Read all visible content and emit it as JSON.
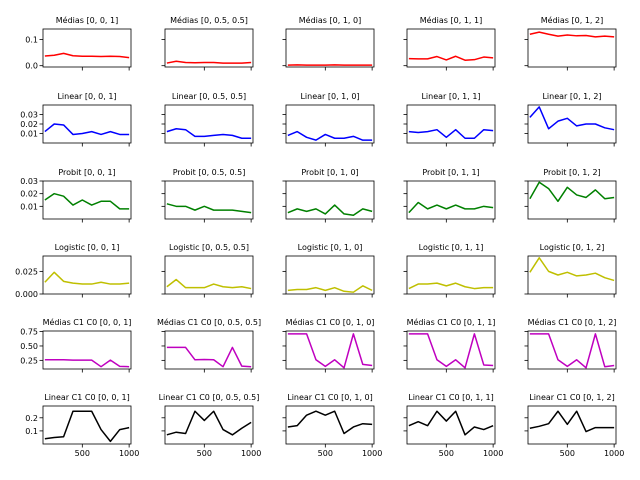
{
  "figure": {
    "x_tick_labels": [
      "500",
      "1000"
    ],
    "x_tick_values": [
      500,
      1000
    ],
    "xlim": [
      80,
      1020
    ]
  },
  "chart_data": [
    {
      "type": "line",
      "row": 0,
      "col": 0,
      "title": "Médias [0, 0, 1]",
      "color": "#ff0000",
      "ylim": [
        -0.005,
        0.14
      ],
      "yticks": [
        0.0,
        0.1
      ],
      "ytick_labels": [
        "0.0",
        "0.1"
      ],
      "x": [
        100,
        200,
        300,
        400,
        500,
        600,
        700,
        800,
        900,
        1000
      ],
      "y": [
        0.037,
        0.04,
        0.047,
        0.038,
        0.036,
        0.036,
        0.035,
        0.036,
        0.035,
        0.031
      ]
    },
    {
      "type": "line",
      "row": 0,
      "col": 1,
      "title": "Médias [0, 0.5, 0.5]",
      "color": "#ff0000",
      "ylim": [
        -0.005,
        0.14
      ],
      "yticks": [
        0.0,
        0.1
      ],
      "ytick_labels": [],
      "x": [
        100,
        200,
        300,
        400,
        500,
        600,
        700,
        800,
        900,
        1000
      ],
      "y": [
        0.01,
        0.017,
        0.012,
        0.011,
        0.012,
        0.012,
        0.01,
        0.01,
        0.01,
        0.012
      ]
    },
    {
      "type": "line",
      "row": 0,
      "col": 2,
      "title": "Médias [0, 1, 0]",
      "color": "#ff0000",
      "ylim": [
        -0.005,
        0.14
      ],
      "yticks": [
        0.0,
        0.1
      ],
      "ytick_labels": [],
      "x": [
        100,
        200,
        300,
        400,
        500,
        600,
        700,
        800,
        900,
        1000
      ],
      "y": [
        0.002,
        0.003,
        0.002,
        0.002,
        0.002,
        0.003,
        0.002,
        0.002,
        0.002,
        0.002
      ]
    },
    {
      "type": "line",
      "row": 0,
      "col": 3,
      "title": "Médias [0, 1, 1]",
      "color": "#ff0000",
      "ylim": [
        -0.005,
        0.14
      ],
      "yticks": [
        0.0,
        0.1
      ],
      "ytick_labels": [],
      "x": [
        100,
        200,
        300,
        400,
        500,
        600,
        700,
        800,
        900,
        1000
      ],
      "y": [
        0.027,
        0.026,
        0.026,
        0.035,
        0.022,
        0.036,
        0.021,
        0.023,
        0.033,
        0.03
      ]
    },
    {
      "type": "line",
      "row": 0,
      "col": 4,
      "title": "Médias [0, 1, 2]",
      "color": "#ff0000",
      "ylim": [
        -0.005,
        0.14
      ],
      "yticks": [
        0.0,
        0.1
      ],
      "ytick_labels": [],
      "x": [
        100,
        200,
        300,
        400,
        500,
        600,
        700,
        800,
        900,
        1000
      ],
      "y": [
        0.12,
        0.128,
        0.12,
        0.113,
        0.117,
        0.114,
        0.115,
        0.11,
        0.113,
        0.11
      ]
    },
    {
      "type": "line",
      "row": 1,
      "col": 0,
      "title": "Linear [0, 0, 1]",
      "color": "#0000ff",
      "ylim": [
        0.0,
        0.04
      ],
      "yticks": [
        0.01,
        0.02,
        0.03
      ],
      "ytick_labels": [
        "0.01",
        "0.02",
        "0.03"
      ],
      "x": [
        100,
        200,
        300,
        400,
        500,
        600,
        700,
        800,
        900,
        1000
      ],
      "y": [
        0.012,
        0.02,
        0.019,
        0.009,
        0.01,
        0.012,
        0.009,
        0.012,
        0.009,
        0.009
      ]
    },
    {
      "type": "line",
      "row": 1,
      "col": 1,
      "title": "Linear [0, 0.5, 0.5]",
      "color": "#0000ff",
      "ylim": [
        0.0,
        0.04
      ],
      "yticks": [
        0.01,
        0.02,
        0.03
      ],
      "ytick_labels": [],
      "x": [
        100,
        200,
        300,
        400,
        500,
        600,
        700,
        800,
        900,
        1000
      ],
      "y": [
        0.012,
        0.015,
        0.014,
        0.007,
        0.007,
        0.008,
        0.009,
        0.008,
        0.005,
        0.005
      ]
    },
    {
      "type": "line",
      "row": 1,
      "col": 2,
      "title": "Linear [0, 1, 0]",
      "color": "#0000ff",
      "ylim": [
        0.0,
        0.04
      ],
      "yticks": [
        0.01,
        0.02,
        0.03
      ],
      "ytick_labels": [],
      "x": [
        100,
        200,
        300,
        400,
        500,
        600,
        700,
        800,
        900,
        1000
      ],
      "y": [
        0.008,
        0.012,
        0.006,
        0.003,
        0.009,
        0.005,
        0.005,
        0.007,
        0.003,
        0.003
      ]
    },
    {
      "type": "line",
      "row": 1,
      "col": 3,
      "title": "Linear [0, 1, 1]",
      "color": "#0000ff",
      "ylim": [
        0.0,
        0.04
      ],
      "yticks": [
        0.01,
        0.02,
        0.03
      ],
      "ytick_labels": [],
      "x": [
        100,
        200,
        300,
        400,
        500,
        600,
        700,
        800,
        900,
        1000
      ],
      "y": [
        0.012,
        0.011,
        0.012,
        0.014,
        0.006,
        0.014,
        0.005,
        0.005,
        0.014,
        0.013
      ]
    },
    {
      "type": "line",
      "row": 1,
      "col": 4,
      "title": "Linear [0, 1, 2]",
      "color": "#0000ff",
      "ylim": [
        0.0,
        0.04
      ],
      "yticks": [
        0.01,
        0.02,
        0.03
      ],
      "ytick_labels": [],
      "x": [
        100,
        200,
        300,
        400,
        500,
        600,
        700,
        800,
        900,
        1000
      ],
      "y": [
        0.027,
        0.038,
        0.015,
        0.023,
        0.026,
        0.018,
        0.02,
        0.02,
        0.016,
        0.014
      ]
    },
    {
      "type": "line",
      "row": 2,
      "col": 0,
      "title": "Probit [0, 0, 1]",
      "color": "#008000",
      "ylim": [
        0.0,
        0.03
      ],
      "yticks": [
        0.01,
        0.02,
        0.03
      ],
      "ytick_labels": [
        "0.01",
        "0.02",
        "0.03"
      ],
      "x": [
        100,
        200,
        300,
        400,
        500,
        600,
        700,
        800,
        900,
        1000
      ],
      "y": [
        0.015,
        0.02,
        0.018,
        0.011,
        0.015,
        0.011,
        0.014,
        0.014,
        0.008,
        0.008
      ]
    },
    {
      "type": "line",
      "row": 2,
      "col": 1,
      "title": "Probit [0, 0.5, 0.5]",
      "color": "#008000",
      "ylim": [
        0.0,
        0.03
      ],
      "yticks": [
        0.01,
        0.02,
        0.03
      ],
      "ytick_labels": [],
      "x": [
        100,
        200,
        300,
        400,
        500,
        600,
        700,
        800,
        900,
        1000
      ],
      "y": [
        0.012,
        0.01,
        0.01,
        0.007,
        0.01,
        0.007,
        0.007,
        0.007,
        0.006,
        0.005
      ]
    },
    {
      "type": "line",
      "row": 2,
      "col": 2,
      "title": "Probit [0, 1, 0]",
      "color": "#008000",
      "ylim": [
        0.0,
        0.03
      ],
      "yticks": [
        0.01,
        0.02,
        0.03
      ],
      "ytick_labels": [],
      "x": [
        100,
        200,
        300,
        400,
        500,
        600,
        700,
        800,
        900,
        1000
      ],
      "y": [
        0.005,
        0.008,
        0.006,
        0.008,
        0.004,
        0.011,
        0.004,
        0.003,
        0.008,
        0.006
      ]
    },
    {
      "type": "line",
      "row": 2,
      "col": 3,
      "title": "Probit [0, 1, 1]",
      "color": "#008000",
      "ylim": [
        0.0,
        0.03
      ],
      "yticks": [
        0.01,
        0.02,
        0.03
      ],
      "ytick_labels": [],
      "x": [
        100,
        200,
        300,
        400,
        500,
        600,
        700,
        800,
        900,
        1000
      ],
      "y": [
        0.005,
        0.013,
        0.008,
        0.011,
        0.008,
        0.011,
        0.008,
        0.008,
        0.01,
        0.009
      ]
    },
    {
      "type": "line",
      "row": 2,
      "col": 4,
      "title": "Probit [0, 1, 2]",
      "color": "#008000",
      "ylim": [
        0.0,
        0.03
      ],
      "yticks": [
        0.01,
        0.02,
        0.03
      ],
      "ytick_labels": [],
      "x": [
        100,
        200,
        300,
        400,
        500,
        600,
        700,
        800,
        900,
        1000
      ],
      "y": [
        0.016,
        0.029,
        0.024,
        0.014,
        0.025,
        0.019,
        0.017,
        0.023,
        0.016,
        0.017
      ]
    },
    {
      "type": "line",
      "row": 3,
      "col": 0,
      "title": "Logistic [0, 0, 1]",
      "color": "#bfbf00",
      "ylim": [
        0.0,
        0.042
      ],
      "yticks": [
        0.0,
        0.025
      ],
      "ytick_labels": [
        "0.000",
        "0.025"
      ],
      "x": [
        100,
        200,
        300,
        400,
        500,
        600,
        700,
        800,
        900,
        1000
      ],
      "y": [
        0.013,
        0.024,
        0.014,
        0.012,
        0.011,
        0.011,
        0.013,
        0.011,
        0.011,
        0.012
      ]
    },
    {
      "type": "line",
      "row": 3,
      "col": 1,
      "title": "Logistic [0, 0.5, 0.5]",
      "color": "#bfbf00",
      "ylim": [
        0.0,
        0.042
      ],
      "yticks": [
        0.0,
        0.025
      ],
      "ytick_labels": [],
      "x": [
        100,
        200,
        300,
        400,
        500,
        600,
        700,
        800,
        900,
        1000
      ],
      "y": [
        0.008,
        0.016,
        0.007,
        0.007,
        0.007,
        0.011,
        0.008,
        0.007,
        0.008,
        0.006
      ]
    },
    {
      "type": "line",
      "row": 3,
      "col": 2,
      "title": "Logistic [0, 1, 0]",
      "color": "#bfbf00",
      "ylim": [
        0.0,
        0.042
      ],
      "yticks": [
        0.0,
        0.025
      ],
      "ytick_labels": [],
      "x": [
        100,
        200,
        300,
        400,
        500,
        600,
        700,
        800,
        900,
        1000
      ],
      "y": [
        0.004,
        0.005,
        0.005,
        0.007,
        0.004,
        0.007,
        0.003,
        0.002,
        0.009,
        0.004
      ]
    },
    {
      "type": "line",
      "row": 3,
      "col": 3,
      "title": "Logistic [0, 1, 1]",
      "color": "#bfbf00",
      "ylim": [
        0.0,
        0.042
      ],
      "yticks": [
        0.0,
        0.025
      ],
      "ytick_labels": [],
      "x": [
        100,
        200,
        300,
        400,
        500,
        600,
        700,
        800,
        900,
        1000
      ],
      "y": [
        0.006,
        0.011,
        0.011,
        0.012,
        0.009,
        0.012,
        0.008,
        0.006,
        0.007,
        0.007
      ]
    },
    {
      "type": "line",
      "row": 3,
      "col": 4,
      "title": "Logistic [0, 1, 2]",
      "color": "#bfbf00",
      "ylim": [
        0.0,
        0.042
      ],
      "yticks": [
        0.0,
        0.025
      ],
      "ytick_labels": [],
      "x": [
        100,
        200,
        300,
        400,
        500,
        600,
        700,
        800,
        900,
        1000
      ],
      "y": [
        0.024,
        0.04,
        0.025,
        0.021,
        0.024,
        0.02,
        0.021,
        0.023,
        0.018,
        0.015
      ]
    },
    {
      "type": "line",
      "row": 4,
      "col": 0,
      "title": "Médias C1 C0 [0, 0, 1]",
      "color": "#bf00bf",
      "ylim": [
        0.1,
        0.76
      ],
      "yticks": [
        0.25,
        0.5,
        0.75
      ],
      "ytick_labels": [
        "0.25",
        "0.50",
        "0.75"
      ],
      "x": [
        100,
        200,
        300,
        400,
        500,
        600,
        700,
        800,
        900,
        1000
      ],
      "y": [
        0.26,
        0.26,
        0.26,
        0.255,
        0.255,
        0.255,
        0.14,
        0.255,
        0.145,
        0.14
      ]
    },
    {
      "type": "line",
      "row": 4,
      "col": 1,
      "title": "Médias C1 C0 [0, 0.5, 0.5]",
      "color": "#bf00bf",
      "ylim": [
        0.1,
        0.76
      ],
      "yticks": [
        0.25,
        0.5,
        0.75
      ],
      "ytick_labels": [],
      "x": [
        100,
        200,
        300,
        400,
        500,
        600,
        700,
        800,
        900,
        1000
      ],
      "y": [
        0.475,
        0.475,
        0.475,
        0.26,
        0.265,
        0.26,
        0.14,
        0.475,
        0.15,
        0.14
      ]
    },
    {
      "type": "line",
      "row": 4,
      "col": 2,
      "title": "Médias C1 C0 [0, 1, 0]",
      "color": "#bf00bf",
      "ylim": [
        0.1,
        0.76
      ],
      "yticks": [
        0.25,
        0.5,
        0.75
      ],
      "ytick_labels": [],
      "x": [
        100,
        200,
        300,
        400,
        500,
        600,
        700,
        800,
        900,
        1000
      ],
      "y": [
        0.71,
        0.71,
        0.71,
        0.26,
        0.145,
        0.26,
        0.12,
        0.71,
        0.18,
        0.16
      ]
    },
    {
      "type": "line",
      "row": 4,
      "col": 3,
      "title": "Médias C1 C0 [0, 1, 1]",
      "color": "#bf00bf",
      "ylim": [
        0.1,
        0.76
      ],
      "yticks": [
        0.25,
        0.5,
        0.75
      ],
      "ytick_labels": [],
      "x": [
        100,
        200,
        300,
        400,
        500,
        600,
        700,
        800,
        900,
        1000
      ],
      "y": [
        0.71,
        0.71,
        0.71,
        0.26,
        0.145,
        0.26,
        0.12,
        0.71,
        0.17,
        0.16
      ]
    },
    {
      "type": "line",
      "row": 4,
      "col": 4,
      "title": "Médias C1 C0 [0, 1, 2]",
      "color": "#bf00bf",
      "ylim": [
        0.1,
        0.76
      ],
      "yticks": [
        0.25,
        0.5,
        0.75
      ],
      "ytick_labels": [],
      "x": [
        100,
        200,
        300,
        400,
        500,
        600,
        700,
        800,
        900,
        1000
      ],
      "y": [
        0.71,
        0.71,
        0.71,
        0.26,
        0.145,
        0.26,
        0.12,
        0.71,
        0.14,
        0.16
      ]
    },
    {
      "type": "line",
      "row": 5,
      "col": 0,
      "title": "Linear C1 C0 [0, 0, 1]",
      "color": "#000000",
      "ylim": [
        0.0,
        0.29
      ],
      "yticks": [
        0.1,
        0.2
      ],
      "ytick_labels": [
        "0.1",
        "0.2"
      ],
      "x": [
        100,
        200,
        300,
        400,
        500,
        600,
        700,
        800,
        900,
        1000
      ],
      "y": [
        0.04,
        0.05,
        0.055,
        0.25,
        0.25,
        0.25,
        0.11,
        0.02,
        0.11,
        0.125
      ]
    },
    {
      "type": "line",
      "row": 5,
      "col": 1,
      "title": "Linear C1 C0 [0, 0.5, 0.5]",
      "color": "#000000",
      "ylim": [
        0.0,
        0.29
      ],
      "yticks": [
        0.1,
        0.2
      ],
      "ytick_labels": [],
      "x": [
        100,
        200,
        300,
        400,
        500,
        600,
        700,
        800,
        900,
        1000
      ],
      "y": [
        0.07,
        0.09,
        0.08,
        0.25,
        0.18,
        0.25,
        0.11,
        0.07,
        0.12,
        0.165
      ]
    },
    {
      "type": "line",
      "row": 5,
      "col": 2,
      "title": "Linear C1 C0 [0, 1, 0]",
      "color": "#000000",
      "ylim": [
        0.0,
        0.29
      ],
      "yticks": [
        0.1,
        0.2
      ],
      "ytick_labels": [],
      "x": [
        100,
        200,
        300,
        400,
        500,
        600,
        700,
        800,
        900,
        1000
      ],
      "y": [
        0.13,
        0.14,
        0.22,
        0.25,
        0.22,
        0.25,
        0.08,
        0.13,
        0.155,
        0.15
      ]
    },
    {
      "type": "line",
      "row": 5,
      "col": 3,
      "title": "Linear C1 C0 [0, 1, 1]",
      "color": "#000000",
      "ylim": [
        0.0,
        0.29
      ],
      "yticks": [
        0.1,
        0.2
      ],
      "ytick_labels": [],
      "x": [
        100,
        200,
        300,
        400,
        500,
        600,
        700,
        800,
        900,
        1000
      ],
      "y": [
        0.14,
        0.17,
        0.14,
        0.25,
        0.175,
        0.25,
        0.07,
        0.13,
        0.11,
        0.14
      ]
    },
    {
      "type": "line",
      "row": 5,
      "col": 4,
      "title": "Linear C1 C0 [0, 1, 2]",
      "color": "#000000",
      "ylim": [
        0.0,
        0.29
      ],
      "yticks": [
        0.1,
        0.2
      ],
      "ytick_labels": [],
      "x": [
        100,
        200,
        300,
        400,
        500,
        600,
        700,
        800,
        900,
        1000
      ],
      "y": [
        0.12,
        0.135,
        0.155,
        0.25,
        0.15,
        0.25,
        0.095,
        0.125,
        0.125,
        0.125
      ]
    }
  ]
}
